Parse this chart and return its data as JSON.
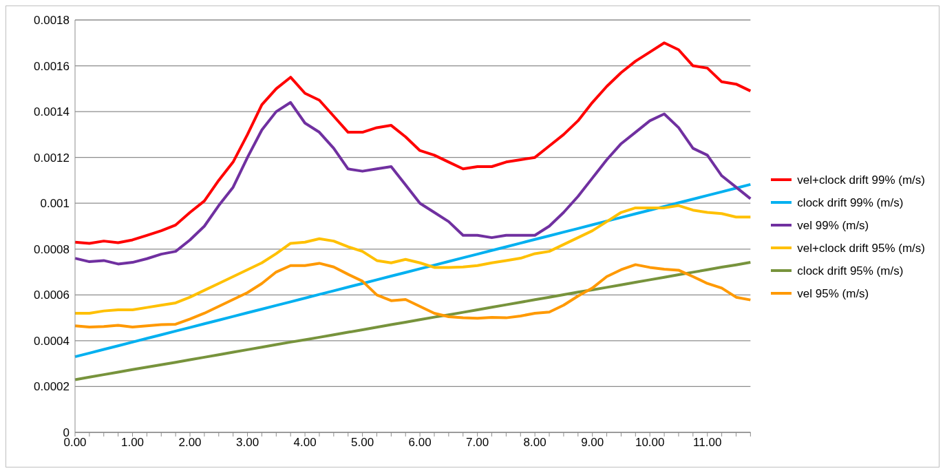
{
  "chart_data": {
    "type": "line",
    "categories": [
      "0.00",
      null,
      null,
      null,
      "1.00",
      null,
      null,
      null,
      "2.00",
      null,
      null,
      null,
      "3.00",
      null,
      null,
      null,
      "4.00",
      null,
      null,
      null,
      "5.00",
      null,
      null,
      null,
      "6.00",
      null,
      null,
      null,
      "7.00",
      null,
      null,
      null,
      "8.00",
      null,
      null,
      null,
      "9.00",
      null,
      null,
      null,
      "10.00",
      null,
      null,
      null,
      "11.00",
      null,
      null,
      null
    ],
    "series": [
      {
        "name": "vel+clock drift 99% (m/s)",
        "color": "#ff0000",
        "values": [
          0.00083,
          0.000825,
          0.000835,
          0.000828,
          0.00084,
          0.00086,
          0.00088,
          0.000905,
          0.00096,
          0.00101,
          0.0011,
          0.00118,
          0.0013,
          0.00143,
          0.0015,
          0.00155,
          0.00148,
          0.00145,
          0.00138,
          0.00131,
          0.00131,
          0.00133,
          0.00134,
          0.00129,
          0.00123,
          0.00121,
          0.00118,
          0.00115,
          0.00116,
          0.00116,
          0.00118,
          0.00119,
          0.0012,
          0.00125,
          0.0013,
          0.00136,
          0.00144,
          0.00151,
          0.00157,
          0.00162,
          0.00166,
          0.0017,
          0.00167,
          0.0016,
          0.00159,
          0.00153,
          0.00152,
          0.00149
        ]
      },
      {
        "name": "clock drift 99% (m/s)",
        "color": "#00b0f0",
        "values": [
          0.00033,
          0.000346,
          0.000362,
          0.000378,
          0.000394,
          0.00041,
          0.000426,
          0.000442,
          0.000458,
          0.000474,
          0.00049,
          0.000506,
          0.000522,
          0.000538,
          0.000554,
          0.00057,
          0.000586,
          0.000602,
          0.000618,
          0.000634,
          0.00065,
          0.000666,
          0.000682,
          0.000698,
          0.000714,
          0.00073,
          0.000746,
          0.000762,
          0.000778,
          0.000794,
          0.00081,
          0.000826,
          0.000842,
          0.000858,
          0.000874,
          0.00089,
          0.000906,
          0.000922,
          0.000938,
          0.000954,
          0.00097,
          0.000986,
          0.001002,
          0.001018,
          0.001034,
          0.00105,
          0.001066,
          0.001082
        ]
      },
      {
        "name": "vel 99% (m/s)",
        "color": "#7030a0",
        "values": [
          0.00076,
          0.000745,
          0.00075,
          0.000735,
          0.000742,
          0.000758,
          0.000778,
          0.00079,
          0.00084,
          0.0009,
          0.00099,
          0.00107,
          0.0012,
          0.00132,
          0.0014,
          0.00144,
          0.00135,
          0.00131,
          0.00124,
          0.00115,
          0.00114,
          0.00115,
          0.00116,
          0.00108,
          0.001,
          0.00096,
          0.00092,
          0.00086,
          0.00086,
          0.00085,
          0.00086,
          0.00086,
          0.00086,
          0.0009,
          0.00096,
          0.00103,
          0.00111,
          0.00119,
          0.00126,
          0.00131,
          0.00136,
          0.00139,
          0.00133,
          0.00124,
          0.00121,
          0.00112,
          0.00107,
          0.00102
        ]
      },
      {
        "name": "vel+clock drift 95% (m/s)",
        "color": "#ffc000",
        "values": [
          0.00052,
          0.00052,
          0.00053,
          0.000535,
          0.000535,
          0.000545,
          0.000555,
          0.000565,
          0.00059,
          0.00062,
          0.00065,
          0.00068,
          0.00071,
          0.00074,
          0.00078,
          0.000825,
          0.00083,
          0.000845,
          0.000835,
          0.00081,
          0.00079,
          0.00075,
          0.00074,
          0.000755,
          0.00074,
          0.00072,
          0.00072,
          0.000722,
          0.000728,
          0.00074,
          0.00075,
          0.00076,
          0.00078,
          0.00079,
          0.00082,
          0.00085,
          0.00088,
          0.00092,
          0.00096,
          0.00098,
          0.00098,
          0.00098,
          0.00099,
          0.00097,
          0.00096,
          0.000955,
          0.00094,
          0.00094
        ]
      },
      {
        "name": "clock drift 95% (m/s)",
        "color": "#77933c",
        "values": [
          0.00023,
          0.000241,
          0.000252,
          0.000263,
          0.000274,
          0.000285,
          0.000295,
          0.000306,
          0.000317,
          0.000328,
          0.000339,
          0.00035,
          0.000361,
          0.000372,
          0.000383,
          0.000394,
          0.000404,
          0.000415,
          0.000426,
          0.000437,
          0.000448,
          0.000459,
          0.00047,
          0.000481,
          0.000492,
          0.000503,
          0.000513,
          0.000524,
          0.000535,
          0.000546,
          0.000557,
          0.000568,
          0.000579,
          0.00059,
          0.000601,
          0.000612,
          0.000622,
          0.000633,
          0.000644,
          0.000655,
          0.000666,
          0.000677,
          0.000688,
          0.000699,
          0.00071,
          0.000721,
          0.000731,
          0.000742
        ]
      },
      {
        "name": "vel 95% (m/s)",
        "color": "#ff9900",
        "values": [
          0.000465,
          0.00046,
          0.000462,
          0.000467,
          0.00046,
          0.000465,
          0.00047,
          0.000472,
          0.000495,
          0.00052,
          0.00055,
          0.00058,
          0.00061,
          0.00065,
          0.0007,
          0.000728,
          0.000728,
          0.000738,
          0.000722,
          0.00069,
          0.00066,
          0.0006,
          0.000575,
          0.00058,
          0.00055,
          0.00052,
          0.000505,
          0.0005,
          0.000498,
          0.000502,
          0.0005,
          0.000508,
          0.00052,
          0.000525,
          0.000555,
          0.000595,
          0.00063,
          0.00068,
          0.00071,
          0.000732,
          0.00072,
          0.000712,
          0.000708,
          0.00068,
          0.00065,
          0.00063,
          0.00059,
          0.000578
        ]
      }
    ],
    "ylim": [
      0,
      0.0018
    ],
    "yticks": [
      0,
      0.0002,
      0.0004,
      0.0006,
      0.0008,
      0.001,
      0.0012,
      0.0014,
      0.0016,
      0.0018
    ],
    "grid": "y",
    "legend": "right",
    "marker": "none",
    "line_style": "solid"
  }
}
